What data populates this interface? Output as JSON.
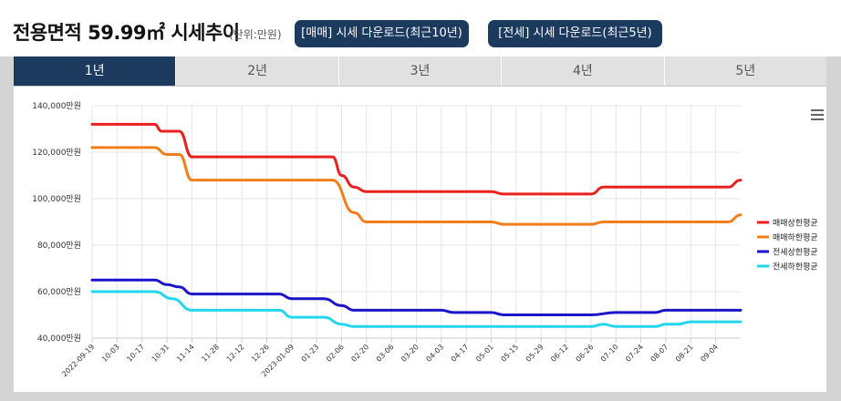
{
  "header": {
    "title": "전용면적 59.99㎡ 시세추이",
    "unit": "(단위:만원)",
    "download_sale": "[매매] 시세 다운로드(최근10년)",
    "download_jeonse": "[전세] 시세 다운로드(최근5년)"
  },
  "tabs": [
    {
      "label": "1년",
      "active": true
    },
    {
      "label": "2년",
      "active": false
    },
    {
      "label": "3년",
      "active": false
    },
    {
      "label": "4년",
      "active": false
    },
    {
      "label": "5년",
      "active": false
    }
  ],
  "colors": {
    "accent": "#1b3a5e"
  },
  "chart_data": {
    "type": "line",
    "title": "",
    "xlabel": "",
    "ylabel": "",
    "ylim": [
      40000,
      140000
    ],
    "yticks": [
      {
        "value": 140000,
        "label": "140,000만원"
      },
      {
        "value": 120000,
        "label": "120,000만원"
      },
      {
        "value": 100000,
        "label": "100,000만원"
      },
      {
        "value": 80000,
        "label": "80,000만원"
      },
      {
        "value": 60000,
        "label": "60,000만원"
      },
      {
        "value": 40000,
        "label": "40,000만원"
      }
    ],
    "x_start": "2022-09-19",
    "x_end": "2023-09-18",
    "xticks": [
      {
        "date": "2022-09-19",
        "label": "2022-09-19"
      },
      {
        "date": "2022-10-03",
        "label": "10-03"
      },
      {
        "date": "2022-10-17",
        "label": "10-17"
      },
      {
        "date": "2022-10-31",
        "label": "10-31"
      },
      {
        "date": "2022-11-14",
        "label": "11-14"
      },
      {
        "date": "2022-11-28",
        "label": "11-28"
      },
      {
        "date": "2022-12-12",
        "label": "12-12"
      },
      {
        "date": "2022-12-26",
        "label": "12-26"
      },
      {
        "date": "2023-01-09",
        "label": "2023-01-09"
      },
      {
        "date": "2023-01-23",
        "label": "01-23"
      },
      {
        "date": "2023-02-06",
        "label": "02-06"
      },
      {
        "date": "2023-02-20",
        "label": "02-20"
      },
      {
        "date": "2023-03-06",
        "label": "03-06"
      },
      {
        "date": "2023-03-20",
        "label": "03-20"
      },
      {
        "date": "2023-04-03",
        "label": "04-03"
      },
      {
        "date": "2023-04-17",
        "label": "04-17"
      },
      {
        "date": "2023-05-01",
        "label": "05-01"
      },
      {
        "date": "2023-05-15",
        "label": "05-15"
      },
      {
        "date": "2023-05-29",
        "label": "05-29"
      },
      {
        "date": "2023-06-12",
        "label": "06-12"
      },
      {
        "date": "2023-06-26",
        "label": "06-26"
      },
      {
        "date": "2023-07-10",
        "label": "07-10"
      },
      {
        "date": "2023-07-24",
        "label": "07-24"
      },
      {
        "date": "2023-08-07",
        "label": "08-07"
      },
      {
        "date": "2023-08-21",
        "label": "08-21"
      },
      {
        "date": "2023-09-04",
        "label": "09-04"
      }
    ],
    "legend_position": "right",
    "grid": true,
    "series": [
      {
        "name": "매매상한평균",
        "color": "#e8201e",
        "points": [
          [
            "2022-09-19",
            132000
          ],
          [
            "2022-10-24",
            132000
          ],
          [
            "2022-10-28",
            129000
          ],
          [
            "2022-11-07",
            129000
          ],
          [
            "2022-11-14",
            118000
          ],
          [
            "2023-01-27",
            118000
          ],
          [
            "2023-02-01",
            118000
          ],
          [
            "2023-02-06",
            110000
          ],
          [
            "2023-02-13",
            105000
          ],
          [
            "2023-02-20",
            103000
          ],
          [
            "2023-05-01",
            103000
          ],
          [
            "2023-05-08",
            102000
          ],
          [
            "2023-06-26",
            102000
          ],
          [
            "2023-07-03",
            105000
          ],
          [
            "2023-09-11",
            105000
          ],
          [
            "2023-09-18",
            108000
          ]
        ]
      },
      {
        "name": "매매하한평균",
        "color": "#f07f1a",
        "points": [
          [
            "2022-09-19",
            122000
          ],
          [
            "2022-10-24",
            122000
          ],
          [
            "2022-10-31",
            119000
          ],
          [
            "2022-11-07",
            119000
          ],
          [
            "2022-11-14",
            108000
          ],
          [
            "2023-01-27",
            108000
          ],
          [
            "2023-02-01",
            108000
          ],
          [
            "2023-02-13",
            94000
          ],
          [
            "2023-02-20",
            90000
          ],
          [
            "2023-05-01",
            90000
          ],
          [
            "2023-05-08",
            89000
          ],
          [
            "2023-06-26",
            89000
          ],
          [
            "2023-07-03",
            90000
          ],
          [
            "2023-09-11",
            90000
          ],
          [
            "2023-09-18",
            93000
          ]
        ]
      },
      {
        "name": "전세상한평균",
        "color": "#1c14c8",
        "points": [
          [
            "2022-09-19",
            65000
          ],
          [
            "2022-10-24",
            65000
          ],
          [
            "2022-10-31",
            63000
          ],
          [
            "2022-11-07",
            62000
          ],
          [
            "2022-11-14",
            59000
          ],
          [
            "2023-01-02",
            59000
          ],
          [
            "2023-01-09",
            57000
          ],
          [
            "2023-01-27",
            57000
          ],
          [
            "2023-02-06",
            54000
          ],
          [
            "2023-02-13",
            52000
          ],
          [
            "2023-04-03",
            52000
          ],
          [
            "2023-04-10",
            51000
          ],
          [
            "2023-05-01",
            51000
          ],
          [
            "2023-05-08",
            50000
          ],
          [
            "2023-06-26",
            50000
          ],
          [
            "2023-07-10",
            51000
          ],
          [
            "2023-08-01",
            51000
          ],
          [
            "2023-08-07",
            52000
          ],
          [
            "2023-09-18",
            52000
          ]
        ]
      },
      {
        "name": "전세하한평균",
        "color": "#23d6ee",
        "points": [
          [
            "2022-09-19",
            60000
          ],
          [
            "2022-10-24",
            60000
          ],
          [
            "2022-11-03",
            57000
          ],
          [
            "2022-11-14",
            52000
          ],
          [
            "2023-01-02",
            52000
          ],
          [
            "2023-01-09",
            49000
          ],
          [
            "2023-01-27",
            49000
          ],
          [
            "2023-02-06",
            46000
          ],
          [
            "2023-02-13",
            45000
          ],
          [
            "2023-06-26",
            45000
          ],
          [
            "2023-07-03",
            46000
          ],
          [
            "2023-07-10",
            45000
          ],
          [
            "2023-08-01",
            45000
          ],
          [
            "2023-08-07",
            46000
          ],
          [
            "2023-08-14",
            46000
          ],
          [
            "2023-08-21",
            47000
          ],
          [
            "2023-09-18",
            47000
          ]
        ]
      }
    ]
  }
}
